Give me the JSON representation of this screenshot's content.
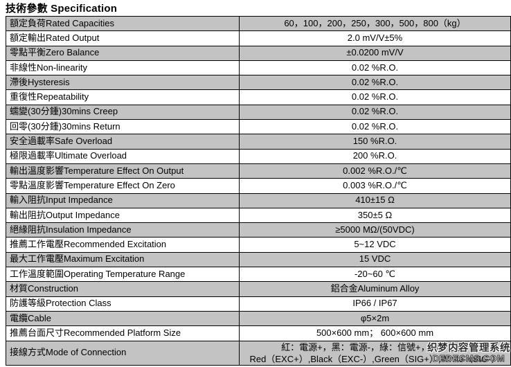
{
  "page_title": "技術參數 Specification",
  "colors": {
    "shaded_row": "#c3c3c3",
    "border": "#000000",
    "text": "#000000"
  },
  "table": {
    "rows": [
      {
        "label": "額定負荷Rated Capacities",
        "value": "60，100，200，250，300，500，800（kg）",
        "shaded": true
      },
      {
        "label": "額定輸出Rated Output",
        "value": "2.0 mV/V±5%",
        "shaded": false
      },
      {
        "label": "零點平衡Zero Balance",
        "value": "±0.0200 mV/V",
        "shaded": true
      },
      {
        "label": "非線性Non-linearity",
        "value": "0.02 %R.O.",
        "shaded": false
      },
      {
        "label": "滯後Hysteresis",
        "value": "0.02 %R.O.",
        "shaded": true
      },
      {
        "label": "重復性Repeatability",
        "value": "0.02 %R.O.",
        "shaded": false
      },
      {
        "label": "蠕變(30分鍾)30mins Creep",
        "value": "0.02 %R.O.",
        "shaded": true
      },
      {
        "label": "回零(30分鍾)30mins Return",
        "value": "0.02 %R.O.",
        "shaded": false
      },
      {
        "label": "安全過載率Safe Overload",
        "value": "150 %R.O.",
        "shaded": true
      },
      {
        "label": "極限過載率Ultimate Overload",
        "value": "200 %R.O.",
        "shaded": false
      },
      {
        "label": "輸出溫度影響Temperature Effect On Output",
        "value": "0.002 %R.O./℃",
        "shaded": true
      },
      {
        "label": "零點溫度影響Temperature Effect On Zero",
        "value": "0.003 %R.O./℃",
        "shaded": false
      },
      {
        "label": "輸入阻抗Input Impedance",
        "value": "410±15 Ω",
        "shaded": true
      },
      {
        "label": "輸出阻抗Output Impedance",
        "value": "350±5 Ω",
        "shaded": false
      },
      {
        "label": "絕緣阻抗Insulation Impedance",
        "value": "≥5000 MΩ/(50VDC)",
        "shaded": true
      },
      {
        "label": "推薦工作電壓Recommended Excitation",
        "value": "5~12 VDC",
        "shaded": false
      },
      {
        "label": "最大工作電壓Maximum Excitation",
        "value": "15 VDC",
        "shaded": true
      },
      {
        "label": "工作溫度範圍Operating Temperature Range",
        "value": "-20~60 ℃",
        "shaded": false
      },
      {
        "label": "材質Construction",
        "value": "鋁合金Aluminum Alloy",
        "shaded": true
      },
      {
        "label": "防護等級Protection Class",
        "value": "IP66 / IP67",
        "shaded": false
      },
      {
        "label": "電纜Cable",
        "value": "φ5×2m",
        "shaded": true
      },
      {
        "label": "推薦台面尺寸Recommended Platform Size",
        "value": "500×600 mm； 600×600 mm",
        "shaded": false
      },
      {
        "label": "接線方式Mode of Connection",
        "value": "紅：電源+，黑：電源-，綠：信號+，白：信號-",
        "value2": "Red（EXC+）,Black（EXC-）,Green（SIG+）,White（SIG-）",
        "shaded": true
      }
    ]
  },
  "watermark": {
    "line1": "织梦内容管理系统",
    "line2": "DEDECMS.COM"
  }
}
